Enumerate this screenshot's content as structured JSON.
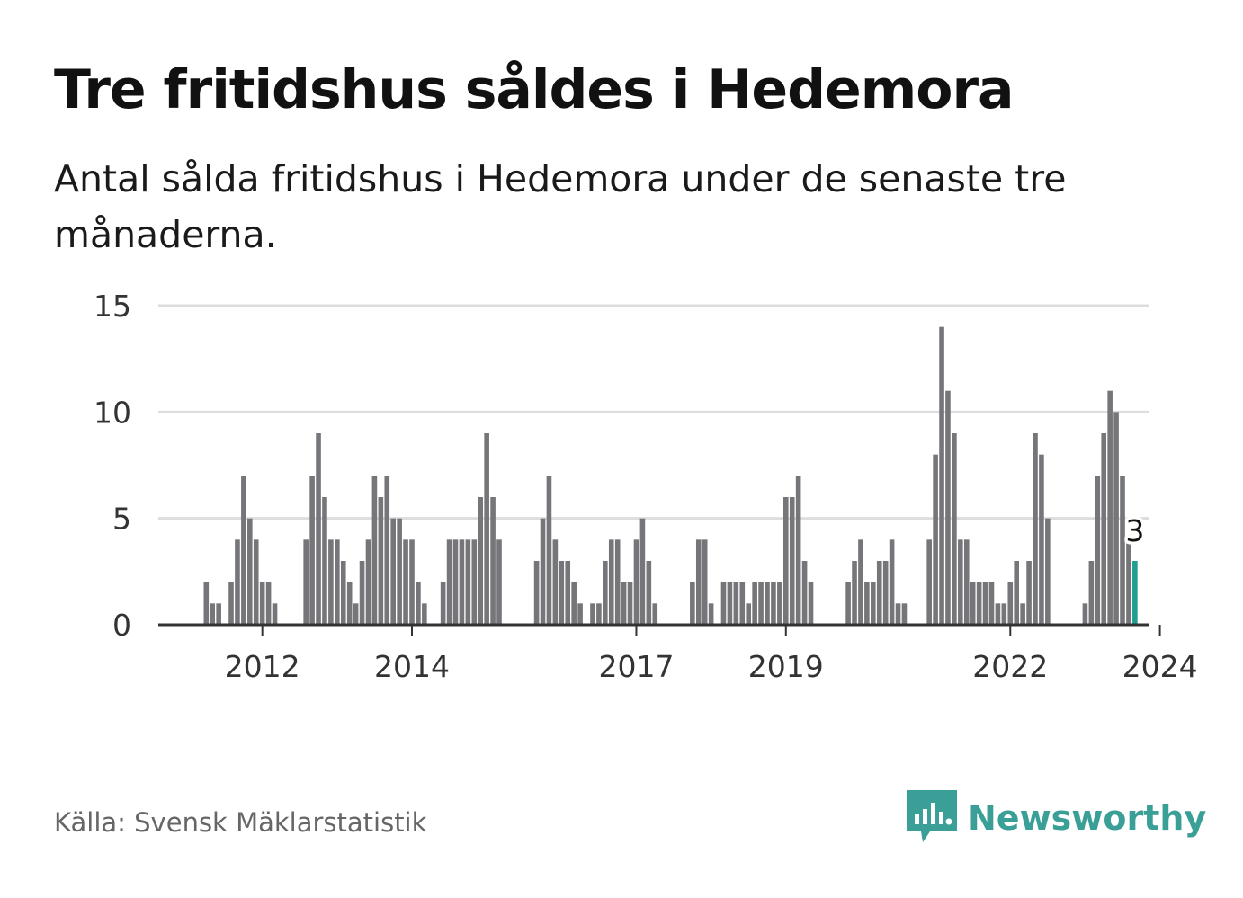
{
  "header": {
    "title": "Tre fritidshus såldes i Hedemora",
    "subtitle": "Antal sålda fritidshus i Hedemora under de senaste tre månaderna."
  },
  "footer": {
    "source": "Källa: Svensk Mäklarstatistik",
    "brand": "Newsworthy"
  },
  "colors": {
    "bar": "#76767a",
    "highlight": "#1f9e91",
    "grid": "#dddddd",
    "axis": "#333333",
    "brand": "#3a9f96"
  },
  "chart_data": {
    "type": "bar",
    "title": "Tre fritidshus såldes i Hedemora",
    "subtitle": "Antal sålda fritidshus i Hedemora under de senaste tre månaderna.",
    "xlabel": "",
    "ylabel": "",
    "ylim": [
      0,
      15
    ],
    "yticks": [
      0,
      5,
      10,
      15
    ],
    "xticks": [
      "2012",
      "2014",
      "2017",
      "2019",
      "2022",
      "2024"
    ],
    "grid": true,
    "x_start": "2011-04",
    "x_unit": "month",
    "values": [
      2,
      1,
      1,
      0,
      2,
      4,
      7,
      5,
      4,
      2,
      2,
      1,
      0,
      0,
      0,
      0,
      4,
      7,
      9,
      6,
      4,
      4,
      3,
      2,
      1,
      3,
      4,
      7,
      6,
      7,
      5,
      5,
      4,
      4,
      2,
      1,
      0,
      0,
      2,
      4,
      4,
      4,
      4,
      4,
      6,
      9,
      6,
      4,
      0,
      0,
      0,
      0,
      0,
      3,
      5,
      7,
      4,
      3,
      3,
      2,
      1,
      0,
      1,
      1,
      3,
      4,
      4,
      2,
      2,
      4,
      5,
      3,
      1,
      0,
      0,
      0,
      0,
      0,
      2,
      4,
      4,
      1,
      0,
      2,
      2,
      2,
      2,
      1,
      2,
      2,
      2,
      2,
      2,
      6,
      6,
      7,
      3,
      2,
      0,
      0,
      0,
      0,
      0,
      2,
      3,
      4,
      2,
      2,
      3,
      3,
      4,
      1,
      1,
      0,
      0,
      0,
      4,
      8,
      14,
      11,
      9,
      4,
      4,
      2,
      2,
      2,
      2,
      1,
      1,
      2,
      3,
      1,
      3,
      9,
      8,
      5,
      0,
      0,
      0,
      0,
      0,
      1,
      3,
      7,
      9,
      11,
      10,
      7,
      4,
      3
    ],
    "highlight_last": true,
    "annotation": "3"
  }
}
